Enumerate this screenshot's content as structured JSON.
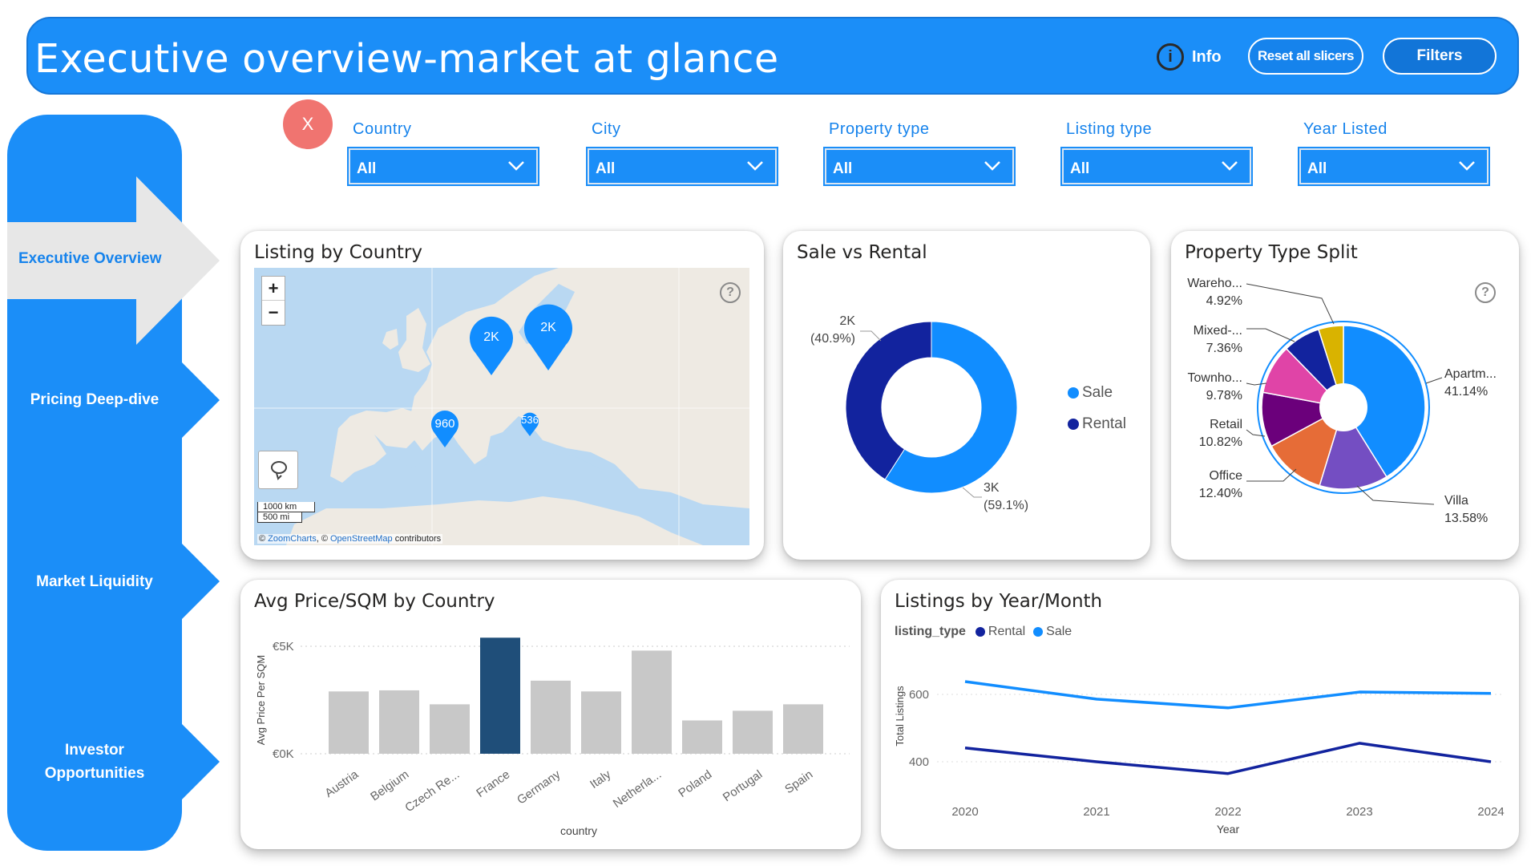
{
  "header": {
    "title": "Executive overview-market at glance",
    "info_icon_glyph": "i",
    "info_label": "Info",
    "reset_label": "Reset all slicers",
    "filters_label": "Filters"
  },
  "nav": {
    "items": [
      {
        "label": "Executive Overview",
        "active": true
      },
      {
        "label": "Pricing Deep-dive"
      },
      {
        "label": "Market Liquidity"
      },
      {
        "label": "Investor Opportunities",
        "lines": [
          "Investor",
          "Opportunities"
        ]
      }
    ]
  },
  "close_button": {
    "label": "X"
  },
  "slicers": [
    {
      "label": "Country",
      "value": "All"
    },
    {
      "label": "City",
      "value": "All"
    },
    {
      "label": "Property type",
      "value": "All"
    },
    {
      "label": "Listing type",
      "value": "All"
    },
    {
      "label": "Year Listed",
      "value": "All"
    }
  ],
  "cards": {
    "map": {
      "title": "Listing by Country",
      "zoom_in": "+",
      "zoom_out": "−",
      "scale_km": "1000 km",
      "scale_mi": "500 mi",
      "attribution_prefix": "© ",
      "attribution_zc": "ZoomCharts",
      "attribution_sep": ", © ",
      "attribution_osm": "OpenStreetMap",
      "attribution_suffix": " contributors",
      "pins": [
        {
          "label": "2K",
          "region": "France"
        },
        {
          "label": "2K",
          "region": "Germany"
        },
        {
          "label": "960",
          "region": "Portugal"
        },
        {
          "label": "536",
          "region": "Italy"
        }
      ]
    },
    "donut": {
      "title": "Sale vs Rental",
      "labels": {
        "rental_value": "2K",
        "rental_pct": "(40.9%)",
        "sale_value": "3K",
        "sale_pct": "(59.1%)"
      },
      "legend": [
        "Sale",
        "Rental"
      ]
    },
    "pie": {
      "title": "Property Type Split",
      "slices": [
        {
          "name": "Apartm...",
          "pct": "41.14%"
        },
        {
          "name": "Villa",
          "pct": "13.58%"
        },
        {
          "name": "Office",
          "pct": "12.40%"
        },
        {
          "name": "Retail",
          "pct": "10.82%"
        },
        {
          "name": "Townho...",
          "pct": "9.78%"
        },
        {
          "name": "Mixed-...",
          "pct": "7.36%"
        },
        {
          "name": "Wareho...",
          "pct": "4.92%"
        }
      ]
    },
    "bar": {
      "title": "Avg Price/SQM by Country"
    },
    "line": {
      "title": "Listings by Year/Month",
      "legend_title": "listing_type",
      "legend": [
        "Rental",
        "Sale"
      ]
    }
  },
  "chart_data": [
    {
      "type": "pie",
      "title": "Sale vs Rental",
      "variant": "donut",
      "categories": [
        "Sale",
        "Rental"
      ],
      "values": [
        59.1,
        40.9
      ],
      "value_labels": [
        "3K",
        "2K"
      ],
      "colors": [
        "#118dff",
        "#12239e"
      ],
      "legend": "right"
    },
    {
      "type": "pie",
      "title": "Property Type Split",
      "categories": [
        "Apartm...",
        "Villa",
        "Office",
        "Retail",
        "Townho...",
        "Mixed-...",
        "Wareho..."
      ],
      "values": [
        41.14,
        13.58,
        12.4,
        10.82,
        9.78,
        7.36,
        4.92
      ],
      "colors": [
        "#118dff",
        "#744ec2",
        "#e66c37",
        "#6b007b",
        "#e044a7",
        "#12239e",
        "#d9b300"
      ]
    },
    {
      "type": "bar",
      "title": "Avg Price/SQM by Country",
      "xlabel": "country",
      "ylabel": "Avg Price Per SQM",
      "categories": [
        "Austria",
        "Belgium",
        "Czech Re...",
        "France",
        "Germany",
        "Italy",
        "Netherla...",
        "Poland",
        "Portugal",
        "Spain"
      ],
      "values": [
        2900,
        2950,
        2300,
        5400,
        3400,
        2900,
        4800,
        1550,
        2000,
        2300
      ],
      "highlight": "France",
      "colors": {
        "bar": "#c8c8c8",
        "highlight": "#1f4e79"
      },
      "yticks": [
        "€0K",
        "€5K"
      ],
      "ylim": [
        0,
        5400
      ],
      "grid": true
    },
    {
      "type": "line",
      "title": "Listings by Year/Month",
      "xlabel": "Year",
      "ylabel": "Total Listings",
      "x": [
        "2020",
        "2021",
        "2022",
        "2023",
        "2024"
      ],
      "series": [
        {
          "name": "Rental",
          "values": [
            441,
            400,
            365,
            455,
            400
          ],
          "color": "#12239e"
        },
        {
          "name": "Sale",
          "values": [
            638,
            586,
            560,
            607,
            603
          ],
          "color": "#118dff"
        }
      ],
      "yticks": [
        400,
        600
      ],
      "ylim": [
        340,
        660
      ],
      "legend": "top-left",
      "grid": true
    }
  ]
}
